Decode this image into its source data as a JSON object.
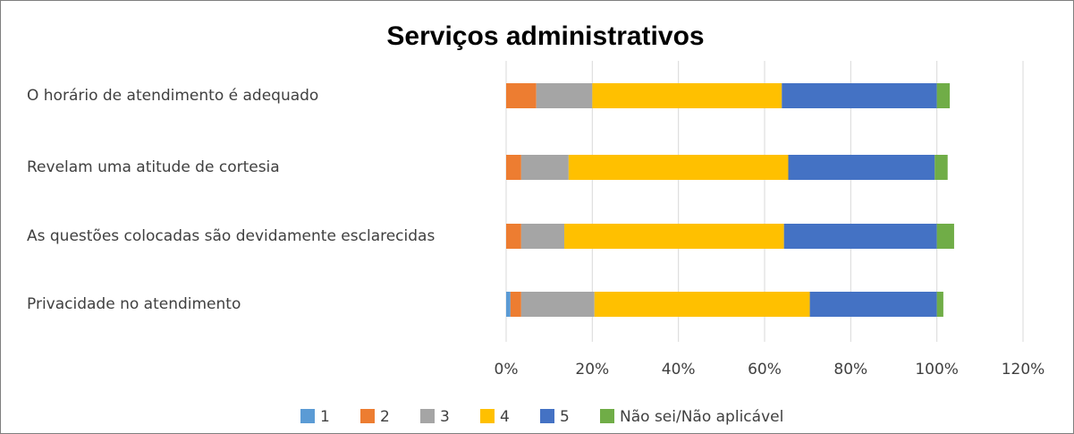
{
  "chart_data": {
    "type": "stacked_barh",
    "title": "Serviços administrativos",
    "categories": [
      "O horário de atendimento é adequado",
      "Revelam uma atitude de cortesia",
      "As questões colocadas são devidamente esclarecidas",
      "Privacidade no atendimento"
    ],
    "series": [
      {
        "name": "1",
        "color": "#5b9bd5",
        "values": [
          0,
          0,
          0,
          1
        ]
      },
      {
        "name": "2",
        "color": "#ed7d31",
        "values": [
          7,
          3.5,
          3.5,
          2.5
        ]
      },
      {
        "name": "3",
        "color": "#a5a5a5",
        "values": [
          13,
          11,
          10,
          17
        ]
      },
      {
        "name": "4",
        "color": "#ffc000",
        "values": [
          44,
          51,
          51,
          50
        ]
      },
      {
        "name": "5",
        "color": "#4472c4",
        "values": [
          36,
          34,
          35.5,
          29.5
        ]
      },
      {
        "name": "Não sei/Não aplicável",
        "color": "#70ad47",
        "values": [
          3,
          3,
          4,
          1.5
        ]
      }
    ],
    "xlim": [
      0,
      120
    ],
    "xticks": [
      {
        "value": 0,
        "label": "0%"
      },
      {
        "value": 20,
        "label": "20%"
      },
      {
        "value": 40,
        "label": "40%"
      },
      {
        "value": 60,
        "label": "60%"
      },
      {
        "value": 80,
        "label": "80%"
      },
      {
        "value": 100,
        "label": "100%"
      },
      {
        "value": 120,
        "label": "120%"
      }
    ],
    "grid": true,
    "legend": "bottom"
  }
}
